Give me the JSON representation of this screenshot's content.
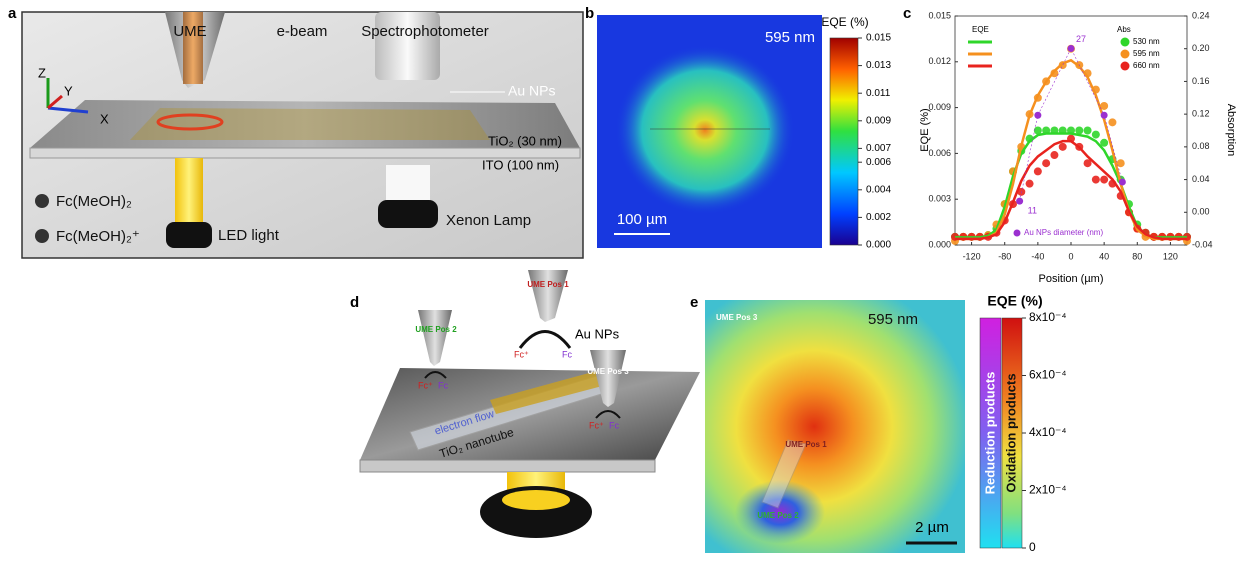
{
  "panel_labels": [
    "a",
    "b",
    "c",
    "d",
    "e"
  ],
  "panel_a": {
    "ume": "UME",
    "ebeam": "e-beam",
    "spectrophotometer": "Spectrophotometer",
    "au_nps": "Au NPs",
    "axis_z": "Z",
    "axis_y": "Y",
    "axis_x": "X",
    "tio2": "TiO₂ (30 nm)",
    "ito": "ITO (100 nm)",
    "fc_reduced": "Fc(MeOH)₂",
    "fc_oxidized": "Fc(MeOH)₂⁺",
    "led": "LED light",
    "xenon": "Xenon Lamp"
  },
  "panel_b": {
    "wavelength": "595 nm",
    "scale_bar": "100 µm",
    "colorbar_title": "EQE (%)",
    "colorbar_lim": [
      0,
      0.015
    ],
    "colorbar_ticks": [
      0.015,
      0.013,
      0.011,
      0.009,
      0.007,
      0.006,
      0.004,
      0.002,
      {
        "value": 0,
        "label": "0.000"
      }
    ]
  },
  "chart_data": {
    "type": "line",
    "xlabel": "Position (µm)",
    "ylabel": "EQE (%)",
    "y2label": "Absorption",
    "xlim": [
      -140,
      140
    ],
    "xticks": [
      -120,
      -80,
      -40,
      0,
      40,
      80,
      120
    ],
    "ylim": [
      0,
      0.015
    ],
    "yticks": [
      {
        "value": 0,
        "label": "0.000"
      },
      0.003,
      0.006,
      0.009,
      0.012,
      0.015
    ],
    "y2lim": [
      -0.04,
      0.24
    ],
    "y2ticks": [
      -0.04,
      {
        "value": 0,
        "label": "0.00"
      },
      0.04,
      0.08,
      0.12,
      0.16,
      {
        "value": 0.2,
        "label": "0.20"
      },
      0.24
    ],
    "legend": {
      "line_header": "EQE",
      "dot_header": "Abs"
    },
    "x": [
      -140,
      -130,
      -120,
      -110,
      -100,
      -90,
      -80,
      -70,
      -60,
      -50,
      -40,
      -30,
      -20,
      -10,
      0,
      10,
      20,
      30,
      40,
      50,
      60,
      70,
      80,
      90,
      100,
      110,
      120,
      130,
      140
    ],
    "series": [
      {
        "name": "530 nm",
        "color": "#2fd62a",
        "values": [
          0.0005,
          0.0005,
          0.0005,
          0.0005,
          0.0006,
          0.001,
          0.0025,
          0.0045,
          0.006,
          0.0068,
          0.0072,
          0.0073,
          0.0073,
          0.0073,
          0.0073,
          0.0072,
          0.0071,
          0.0068,
          0.0062,
          0.0052,
          0.004,
          0.0025,
          0.0012,
          0.0007,
          0.0005,
          0.0005,
          0.0005,
          0.0005,
          0.0005
        ],
        "abs": [
          -0.03,
          -0.03,
          -0.03,
          -0.03,
          -0.028,
          -0.02,
          0.01,
          0.05,
          0.075,
          0.09,
          0.1,
          0.1,
          0.1,
          0.1,
          0.1,
          0.1,
          0.1,
          0.095,
          0.085,
          0.065,
          0.04,
          0.01,
          -0.015,
          -0.025,
          -0.03,
          -0.03,
          -0.03,
          -0.03,
          -0.03
        ]
      },
      {
        "name": "595 nm",
        "color": "#f5901e",
        "values": [
          0.0004,
          0.0004,
          0.0004,
          0.0004,
          0.0005,
          0.0008,
          0.002,
          0.004,
          0.0065,
          0.0085,
          0.0098,
          0.0107,
          0.0114,
          0.0119,
          0.0121,
          0.0117,
          0.011,
          0.0098,
          0.0082,
          0.0062,
          0.004,
          0.0022,
          0.001,
          0.0006,
          0.0004,
          0.0004,
          0.0004,
          0.0004,
          0.0004
        ],
        "abs": [
          -0.035,
          -0.03,
          -0.03,
          -0.03,
          -0.028,
          -0.015,
          0.01,
          0.05,
          0.08,
          0.12,
          0.14,
          0.16,
          0.17,
          0.18,
          0.2,
          0.18,
          0.17,
          0.15,
          0.13,
          0.11,
          0.06,
          0,
          -0.02,
          -0.03,
          -0.03,
          -0.03,
          -0.03,
          -0.03,
          -0.035
        ]
      },
      {
        "name": "660 nm",
        "color": "#e8231e",
        "values": [
          0.0004,
          0.0004,
          0.0004,
          0.0004,
          0.0005,
          0.0007,
          0.0015,
          0.0028,
          0.0042,
          0.0052,
          0.0058,
          0.0062,
          0.0066,
          0.0068,
          0.0068,
          0.0064,
          0.0058,
          0.0053,
          0.0048,
          0.0043,
          0.0035,
          0.0022,
          0.0012,
          0.0007,
          0.0005,
          0.0004,
          0.0004,
          0.0004,
          0.0004
        ],
        "abs": [
          -0.03,
          -0.03,
          -0.03,
          -0.03,
          -0.03,
          -0.025,
          -0.01,
          0.01,
          0.025,
          0.035,
          0.05,
          0.06,
          0.07,
          0.08,
          0.09,
          0.08,
          0.06,
          0.04,
          0.04,
          0.035,
          0.02,
          0,
          -0.02,
          -0.025,
          -0.03,
          -0.03,
          -0.03,
          -0.03,
          -0.03
        ]
      }
    ],
    "diameter": {
      "name": "Au NPs diameter (nm)",
      "color": "#9b30d0",
      "x": [
        -62,
        -40,
        0,
        40,
        62
      ],
      "values": [
        11,
        20,
        27,
        20,
        13
      ],
      "value_labels": [
        "11",
        null,
        "27",
        null,
        null
      ],
      "dlim": [
        6.4,
        30.4
      ]
    }
  },
  "panel_d": {
    "ume_pos1": "UME Pos 1",
    "ume_pos2": "UME Pos 2",
    "ume_pos3": "UME Pos 3",
    "au_nps": "Au NPs",
    "fc_plus": [
      "Fc⁺",
      "Fc⁺",
      "Fc⁺"
    ],
    "fc": [
      "Fc",
      "Fc",
      "Fc"
    ],
    "electron_flow": "electron flow",
    "nanotube": "TiO₂ nanotube"
  },
  "panel_e": {
    "wavelength": "595 nm",
    "ume_pos1": "UME Pos 1",
    "ume_pos2": "UME Pos 2",
    "ume_pos3": "UME Pos 3",
    "scale_bar": "2 µm",
    "colorbar_title": "EQE (%)",
    "reduction": "Reduction products",
    "oxidation": "Oxidation products",
    "colorbar_lim": [
      0,
      0.0008
    ],
    "colorbar_ticks": [
      {
        "value": 0.0008,
        "label": "8x10⁻⁴"
      },
      {
        "value": 0.0006,
        "label": "6x10⁻⁴"
      },
      {
        "value": 0.0004,
        "label": "4x10⁻⁴"
      },
      {
        "value": 0.0002,
        "label": "2x10⁻⁴"
      },
      0
    ]
  }
}
